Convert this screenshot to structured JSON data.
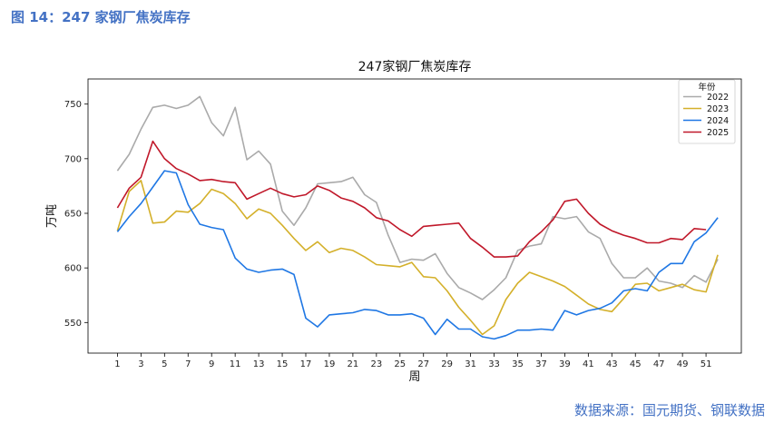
{
  "figure_caption": "图 14：247 家钢厂焦炭库存",
  "source_note": "数据来源：国元期货、钢联数据",
  "chart_data": {
    "type": "line",
    "title": "247家钢厂焦炭库存",
    "xlabel": "周",
    "ylabel": "万吨",
    "xlim": [
      -1.5,
      54
    ],
    "ylim": [
      522,
      773
    ],
    "x_ticks": [
      1,
      3,
      5,
      7,
      9,
      11,
      13,
      15,
      17,
      19,
      21,
      23,
      25,
      27,
      29,
      31,
      33,
      35,
      37,
      39,
      41,
      43,
      45,
      47,
      49,
      51
    ],
    "y_ticks": [
      550,
      600,
      650,
      700,
      750
    ],
    "grid": false,
    "legend_title": "年份",
    "legend_position": "top-right",
    "series": [
      {
        "name": "2022",
        "color": "#aaaaaa",
        "values": [
          689,
          704,
          727,
          747,
          749,
          746,
          749,
          757,
          733,
          721,
          747,
          699,
          707,
          695,
          652,
          639,
          655,
          677,
          678,
          679,
          683,
          667,
          660,
          630,
          605,
          608,
          607,
          613,
          595,
          582,
          577,
          571,
          580,
          591,
          616,
          620,
          622,
          647,
          645,
          647,
          633,
          627,
          604,
          591,
          591,
          600,
          588,
          586,
          582,
          593,
          587,
          608
        ]
      },
      {
        "name": "2023",
        "color": "#d4b02a",
        "values": [
          634,
          670,
          680,
          641,
          642,
          652,
          651,
          659,
          672,
          668,
          659,
          645,
          654,
          650,
          639,
          627,
          616,
          624,
          614,
          618,
          616,
          610,
          603,
          602,
          601,
          605,
          592,
          591,
          579,
          564,
          552,
          539,
          547,
          571,
          586,
          596,
          592,
          588,
          583,
          575,
          567,
          562,
          560,
          572,
          585,
          586,
          579,
          582,
          585,
          580,
          578,
          612
        ]
      },
      {
        "name": "2024",
        "color": "#1f77e4",
        "values": [
          633,
          647,
          659,
          674,
          689,
          687,
          658,
          640,
          637,
          635,
          609,
          599,
          596,
          598,
          599,
          594,
          554,
          546,
          557,
          558,
          559,
          562,
          561,
          557,
          557,
          558,
          554,
          539,
          553,
          544,
          544,
          537,
          535,
          538,
          543,
          543,
          544,
          543,
          561,
          557,
          561,
          563,
          568,
          579,
          581,
          579,
          596,
          604,
          604,
          624,
          632,
          646
        ]
      },
      {
        "name": "2025",
        "color": "#c0182a",
        "values": [
          655,
          673,
          683,
          716,
          700,
          691,
          686,
          680,
          681,
          679,
          678,
          663,
          668,
          673,
          668,
          665,
          667,
          675,
          671,
          664,
          661,
          655,
          646,
          643,
          635,
          629,
          638,
          639,
          640,
          641,
          627,
          619,
          610,
          610,
          611,
          624,
          633,
          644,
          661,
          663,
          650,
          640,
          634,
          630,
          627,
          623,
          623,
          627,
          626,
          636,
          635,
          null
        ]
      }
    ]
  }
}
